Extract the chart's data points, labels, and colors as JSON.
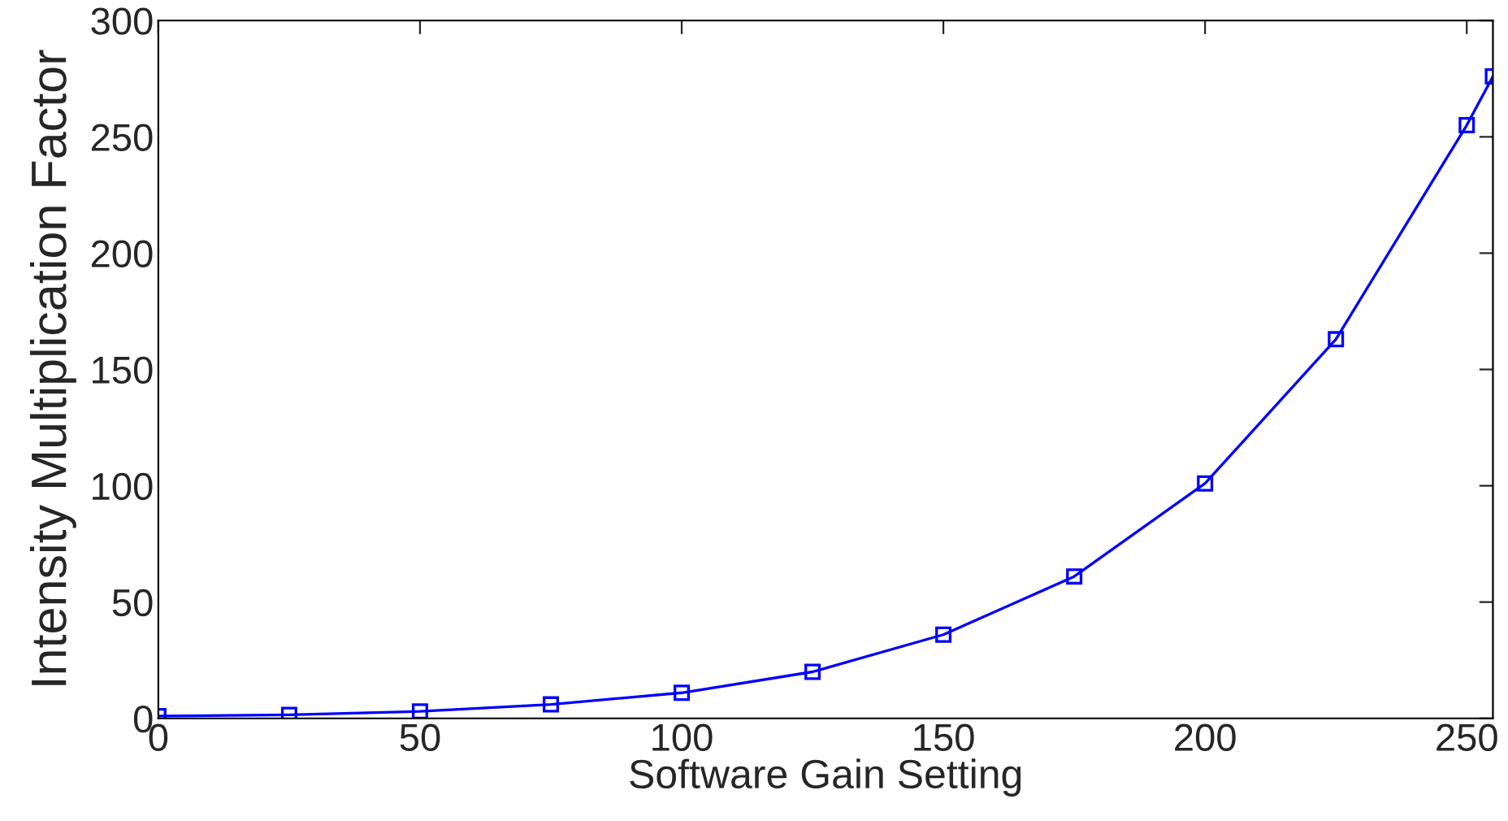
{
  "chart_data": {
    "type": "line",
    "xlabel": "Software Gain Setting",
    "ylabel": "Intensity Multiplication Factor",
    "x": [
      0,
      25,
      50,
      75,
      100,
      125,
      150,
      175,
      200,
      225,
      250,
      255
    ],
    "series": [
      {
        "color": "#0000ff",
        "values": [
          1,
          1.5,
          3,
          6,
          11,
          20,
          36,
          61,
          101,
          163,
          255,
          276
        ]
      }
    ],
    "xlim": [
      0,
      255
    ],
    "ylim": [
      0,
      300
    ],
    "xticks": [
      0,
      50,
      100,
      150,
      200,
      250
    ],
    "yticks": [
      0,
      50,
      100,
      150,
      200,
      250,
      300
    ],
    "marker": "square",
    "line_style": "solid",
    "grid": false,
    "legend": false
  }
}
